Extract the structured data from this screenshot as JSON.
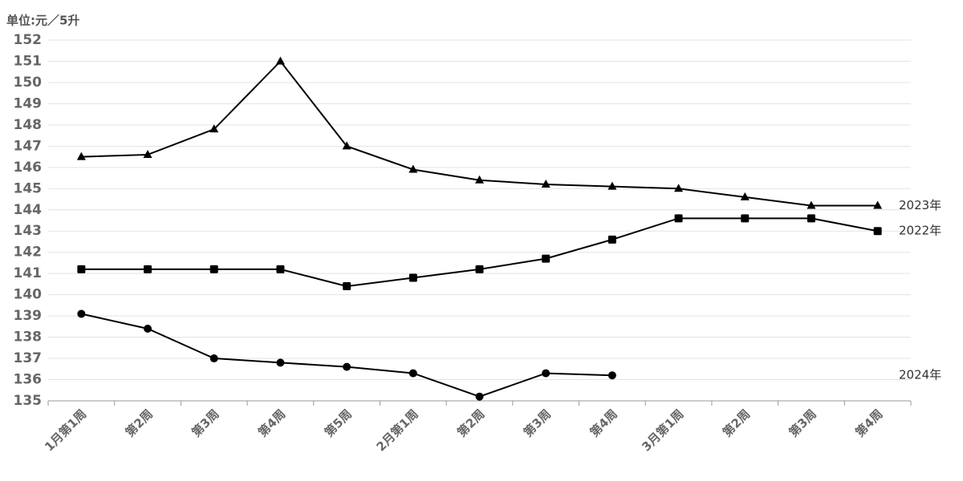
{
  "chart_data": {
    "type": "line",
    "unit_label": "单位:元／5升",
    "categories": [
      "1月第1周",
      "第2周",
      "第3周",
      "第4周",
      "第5周",
      "2月第1周",
      "第2周",
      "第3周",
      "第4周",
      "3月第1周",
      "第2周",
      "第3周",
      "第4周"
    ],
    "series": [
      {
        "name": "2023年",
        "color": "#000000",
        "marker": "triangle",
        "values": [
          146.5,
          146.6,
          147.8,
          151,
          147,
          145.9,
          145.4,
          145.2,
          145.1,
          145,
          144.6,
          144.2,
          144.2
        ]
      },
      {
        "name": "2022年",
        "color": "#000000",
        "marker": "square",
        "values": [
          141.2,
          141.2,
          141.2,
          141.2,
          140.4,
          140.8,
          141.2,
          141.7,
          142.6,
          143.6,
          143.6,
          143.6,
          143
        ]
      },
      {
        "name": "2024年",
        "color": "#000000",
        "marker": "circle",
        "values": [
          139.1,
          138.4,
          137,
          136.8,
          136.6,
          136.3,
          135.2,
          136.3,
          136.2,
          null,
          null,
          null,
          null
        ]
      }
    ],
    "ylim": [
      135,
      152
    ],
    "yticks": [
      135,
      136,
      137,
      138,
      139,
      140,
      141,
      142,
      143,
      144,
      145,
      146,
      147,
      148,
      149,
      150,
      151,
      152
    ],
    "grid": true
  }
}
